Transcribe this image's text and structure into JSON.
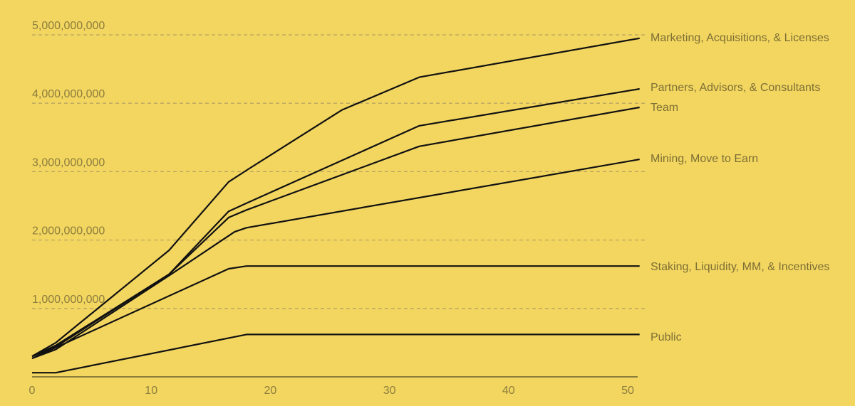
{
  "chart_data": {
    "type": "line",
    "title": "",
    "xlabel": "",
    "ylabel": "",
    "xlim": [
      0,
      51
    ],
    "ylim": [
      0,
      5000000000
    ],
    "x_ticks": [
      0,
      10,
      20,
      30,
      40,
      50
    ],
    "x_tick_labels": [
      "0",
      "10",
      "20",
      "30",
      "40",
      "50"
    ],
    "y_ticks": [
      1000000000,
      2000000000,
      3000000000,
      4000000000,
      5000000000
    ],
    "y_tick_labels": [
      "1,000,000,000",
      "2,000,000,000",
      "3,000,000,000",
      "4,000,000,000",
      "5,000,000,000"
    ],
    "grid": "horizontal dashed",
    "legend": "direct labels at right end of lines",
    "colors": {
      "background": "#f3d660",
      "line": "#111111",
      "grid": "#b8a460",
      "text": "#8c7d3e"
    },
    "series": [
      {
        "name": "Public",
        "points": [
          [
            0,
            60000000
          ],
          [
            2,
            60000000
          ],
          [
            18,
            620000000
          ],
          [
            51,
            620000000
          ]
        ]
      },
      {
        "name": "Staking, Liquidity, MM, & Incentives",
        "points": [
          [
            0,
            270000000
          ],
          [
            16.5,
            1580000000
          ],
          [
            18,
            1620000000
          ],
          [
            51,
            1620000000
          ]
        ]
      },
      {
        "name": "Mining, Move to Earn",
        "points": [
          [
            0,
            270000000
          ],
          [
            2,
            400000000
          ],
          [
            11.5,
            1480000000
          ],
          [
            17,
            2120000000
          ],
          [
            18,
            2180000000
          ],
          [
            51,
            3180000000
          ]
        ]
      },
      {
        "name": "Team",
        "points": [
          [
            0,
            300000000
          ],
          [
            2,
            440000000
          ],
          [
            11.5,
            1500000000
          ],
          [
            16.5,
            2330000000
          ],
          [
            18,
            2440000000
          ],
          [
            32.5,
            3370000000
          ],
          [
            51,
            3940000000
          ]
        ]
      },
      {
        "name": "Partners, Advisors, & Consultants",
        "points": [
          [
            0,
            300000000
          ],
          [
            2,
            460000000
          ],
          [
            11.5,
            1500000000
          ],
          [
            16.5,
            2420000000
          ],
          [
            18,
            2540000000
          ],
          [
            32.5,
            3670000000
          ],
          [
            51,
            4210000000
          ]
        ]
      },
      {
        "name": "Marketing, Acquisitions, & Licenses",
        "points": [
          [
            0,
            300000000
          ],
          [
            2,
            500000000
          ],
          [
            11.5,
            1850000000
          ],
          [
            16.5,
            2850000000
          ],
          [
            18,
            3020000000
          ],
          [
            26,
            3900000000
          ],
          [
            32.5,
            4380000000
          ],
          [
            51,
            4950000000
          ]
        ]
      }
    ]
  }
}
